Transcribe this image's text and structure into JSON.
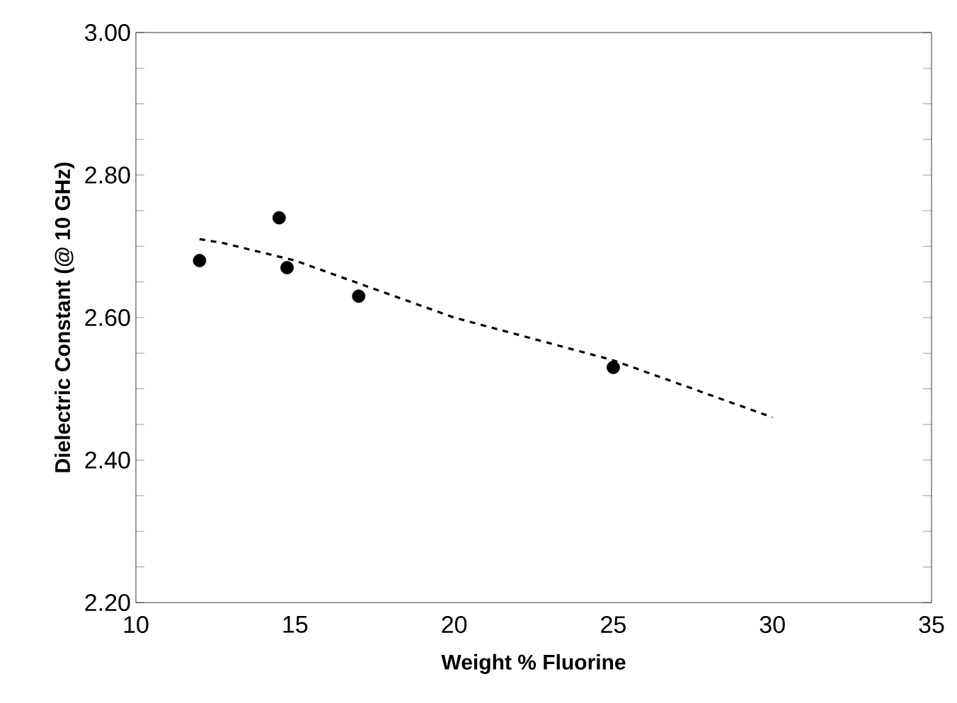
{
  "chart_data": {
    "type": "scatter",
    "xlabel": "Weight % Fluorine",
    "ylabel": "Dielectric Constant (@ 10 GHz)",
    "xlim": [
      10,
      35
    ],
    "xticks": [
      10,
      15,
      20,
      25,
      30,
      35
    ],
    "ylim": [
      2.2,
      3.0
    ],
    "yticks": [
      {
        "value": 2.2,
        "label": "2.20"
      },
      {
        "value": 2.25,
        "label": null
      },
      {
        "value": 2.3,
        "label": null
      },
      {
        "value": 2.35,
        "label": null
      },
      {
        "value": 2.4,
        "label": "2.40"
      },
      {
        "value": 2.45,
        "label": null
      },
      {
        "value": 2.5,
        "label": null
      },
      {
        "value": 2.55,
        "label": null
      },
      {
        "value": 2.6,
        "label": "2.60"
      },
      {
        "value": 2.65,
        "label": null
      },
      {
        "value": 2.7,
        "label": null
      },
      {
        "value": 2.75,
        "label": null
      },
      {
        "value": 2.8,
        "label": "2.80"
      },
      {
        "value": 2.85,
        "label": null
      },
      {
        "value": 2.9,
        "label": null
      },
      {
        "value": 2.95,
        "label": null
      },
      {
        "value": 3.0,
        "label": "3.00"
      }
    ],
    "grid": false,
    "series": [
      {
        "color": "#000000",
        "marker": "circle",
        "x": [
          12,
          14.5,
          14.75,
          17,
          25
        ],
        "values": [
          2.68,
          2.74,
          2.67,
          2.63,
          2.53
        ]
      },
      {
        "type": "line",
        "color": "#000000",
        "line_style": "dashed",
        "marker": "none",
        "x": [
          12,
          12.7,
          15,
          17.5,
          20,
          22.5,
          25,
          27.5,
          30
        ],
        "values": [
          2.71,
          2.705,
          2.68,
          2.64,
          2.6,
          2.57,
          2.54,
          2.5,
          2.46
        ]
      }
    ]
  }
}
